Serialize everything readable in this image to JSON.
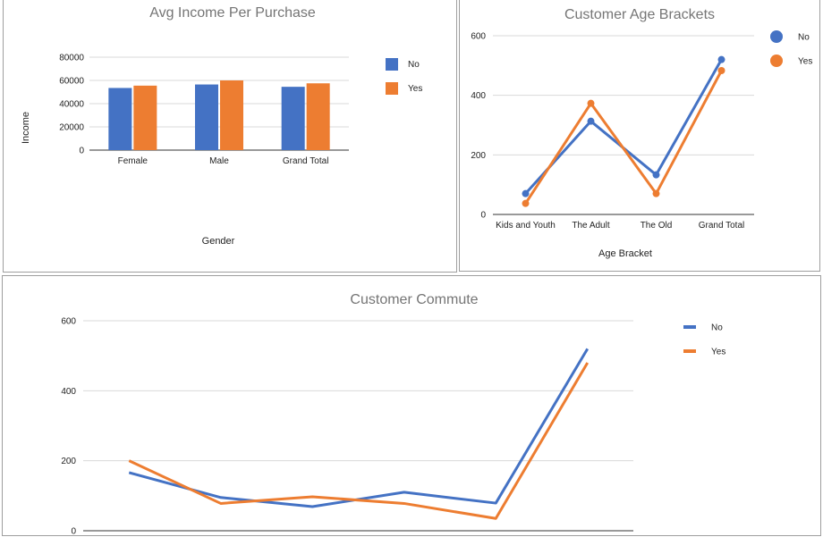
{
  "chart_data": [
    {
      "id": "income",
      "type": "bar",
      "title": "Avg Income Per Purchase",
      "xlabel": "Gender",
      "ylabel": "Income",
      "categories": [
        "Female",
        "Male",
        "Grand Total"
      ],
      "ylim": [
        0,
        80000
      ],
      "yticks": [
        0,
        20000,
        40000,
        60000,
        80000
      ],
      "series": [
        {
          "name": "No",
          "color": "#4472c4",
          "values": [
            53500,
            56500,
            54500
          ]
        },
        {
          "name": "Yes",
          "color": "#ed7d31",
          "values": [
            55500,
            60000,
            57500
          ]
        }
      ],
      "legend": "right",
      "grid": true
    },
    {
      "id": "age",
      "type": "line",
      "title": "Customer Age Brackets",
      "xlabel": "Age Bracket",
      "ylabel": "",
      "categories": [
        "Kids and Youth",
        "The Adult",
        "The Old",
        "Grand Total"
      ],
      "ylim": [
        0,
        600
      ],
      "yticks": [
        0,
        200,
        400,
        600
      ],
      "series": [
        {
          "name": "No",
          "color": "#4472c4",
          "values": [
            70,
            313,
            133,
            520
          ]
        },
        {
          "name": "Yes",
          "color": "#ed7d31",
          "values": [
            37,
            373,
            70,
            483
          ]
        }
      ],
      "markers": true,
      "legend": "right",
      "grid": true
    },
    {
      "id": "commute",
      "type": "line",
      "title": "Customer Commute",
      "xlabel": "",
      "ylabel": "",
      "categories": [
        "",
        "",
        "",
        "",
        "",
        ""
      ],
      "ylim": [
        0,
        600
      ],
      "yticks": [
        0,
        200,
        400,
        600
      ],
      "series": [
        {
          "name": "No",
          "color": "#4472c4",
          "values": [
            166,
            95,
            69,
            110,
            79,
            520
          ]
        },
        {
          "name": "Yes",
          "color": "#ed7d31",
          "values": [
            200,
            78,
            97,
            78,
            35,
            480
          ]
        }
      ],
      "legend": "right",
      "grid": true
    }
  ]
}
